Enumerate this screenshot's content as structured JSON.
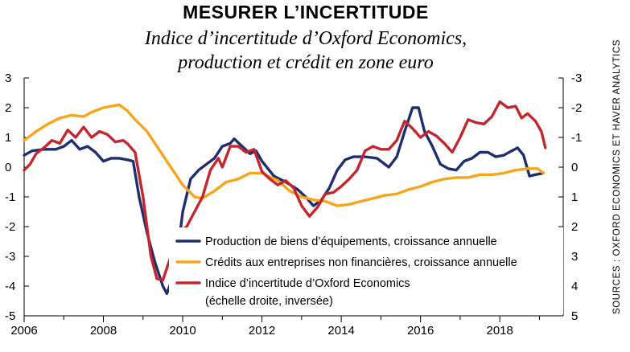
{
  "title": "MESURER L’INCERTITUDE",
  "subtitle_line1": "Indice d’incertitude d’Oxford Economics,",
  "subtitle_line2": "production et crédit en zone euro",
  "source": "SOURCES : OXFORD ECONOMICS ET HAVER ANALYTICS",
  "chart_data": {
    "type": "line",
    "xlim": [
      2006,
      2019.6
    ],
    "ylim_left": [
      -5,
      3
    ],
    "ylim_right_inverted": [
      5,
      -3
    ],
    "x_ticks": [
      "2006",
      "2008",
      "2010",
      "2012",
      "2014",
      "2016",
      "2018"
    ],
    "y_ticks_left": [
      "3",
      "2",
      "1",
      "0",
      "-1",
      "-2",
      "-3",
      "-4",
      "-5"
    ],
    "y_ticks_right": [
      "-3",
      "-2",
      "-1",
      "0",
      "1",
      "2",
      "3",
      "4",
      "5"
    ],
    "grid": false,
    "legend_position": "bottom-right-inside",
    "series": [
      {
        "name": "Production de biens d’équipements, croissance annuelle",
        "color": "#1f2f6e",
        "axis": "left",
        "points": [
          [
            2006.0,
            0.4
          ],
          [
            2006.2,
            0.55
          ],
          [
            2006.5,
            0.6
          ],
          [
            2006.8,
            0.6
          ],
          [
            2007.0,
            0.7
          ],
          [
            2007.2,
            0.9
          ],
          [
            2007.4,
            0.6
          ],
          [
            2007.6,
            0.7
          ],
          [
            2007.8,
            0.5
          ],
          [
            2008.0,
            0.2
          ],
          [
            2008.2,
            0.3
          ],
          [
            2008.4,
            0.3
          ],
          [
            2008.6,
            0.25
          ],
          [
            2008.75,
            0.2
          ],
          [
            2008.9,
            -1.0
          ],
          [
            2009.1,
            -2.2
          ],
          [
            2009.3,
            -3.2
          ],
          [
            2009.5,
            -4.0
          ],
          [
            2009.6,
            -4.25
          ],
          [
            2009.75,
            -3.7
          ],
          [
            2009.9,
            -2.6
          ],
          [
            2010.0,
            -1.5
          ],
          [
            2010.2,
            -0.4
          ],
          [
            2010.4,
            -0.1
          ],
          [
            2010.6,
            0.1
          ],
          [
            2010.8,
            0.3
          ],
          [
            2011.0,
            0.7
          ],
          [
            2011.2,
            0.8
          ],
          [
            2011.3,
            0.95
          ],
          [
            2011.5,
            0.7
          ],
          [
            2011.7,
            0.45
          ],
          [
            2011.85,
            0.55
          ],
          [
            2012.0,
            0.2
          ],
          [
            2012.3,
            -0.3
          ],
          [
            2012.6,
            -0.5
          ],
          [
            2012.9,
            -0.75
          ],
          [
            2013.1,
            -1.0
          ],
          [
            2013.3,
            -1.3
          ],
          [
            2013.5,
            -1.1
          ],
          [
            2013.7,
            -0.7
          ],
          [
            2013.9,
            -0.1
          ],
          [
            2014.1,
            0.25
          ],
          [
            2014.3,
            0.35
          ],
          [
            2014.6,
            0.35
          ],
          [
            2014.9,
            0.3
          ],
          [
            2015.0,
            0.2
          ],
          [
            2015.2,
            0.0
          ],
          [
            2015.4,
            0.35
          ],
          [
            2015.6,
            1.2
          ],
          [
            2015.8,
            2.0
          ],
          [
            2015.95,
            2.0
          ],
          [
            2016.1,
            1.2
          ],
          [
            2016.3,
            0.7
          ],
          [
            2016.5,
            0.1
          ],
          [
            2016.7,
            -0.05
          ],
          [
            2016.9,
            -0.1
          ],
          [
            2017.1,
            0.2
          ],
          [
            2017.3,
            0.3
          ],
          [
            2017.5,
            0.5
          ],
          [
            2017.7,
            0.5
          ],
          [
            2017.9,
            0.35
          ],
          [
            2018.1,
            0.4
          ],
          [
            2018.3,
            0.55
          ],
          [
            2018.45,
            0.65
          ],
          [
            2018.6,
            0.4
          ],
          [
            2018.75,
            -0.3
          ],
          [
            2018.9,
            -0.25
          ],
          [
            2019.1,
            -0.2
          ]
        ]
      },
      {
        "name": "Crédits aux entreprises non financières, croissance annuelle",
        "color": "#f5a61b",
        "axis": "left",
        "points": [
          [
            2006.0,
            0.9
          ],
          [
            2006.3,
            1.2
          ],
          [
            2006.6,
            1.45
          ],
          [
            2006.9,
            1.65
          ],
          [
            2007.2,
            1.75
          ],
          [
            2007.5,
            1.7
          ],
          [
            2007.7,
            1.85
          ],
          [
            2008.0,
            2.0
          ],
          [
            2008.2,
            2.05
          ],
          [
            2008.4,
            2.1
          ],
          [
            2008.6,
            1.9
          ],
          [
            2008.8,
            1.6
          ],
          [
            2009.1,
            1.2
          ],
          [
            2009.4,
            0.6
          ],
          [
            2009.7,
            0.0
          ],
          [
            2010.0,
            -0.6
          ],
          [
            2010.3,
            -1.0
          ],
          [
            2010.5,
            -1.05
          ],
          [
            2010.8,
            -0.8
          ],
          [
            2011.1,
            -0.5
          ],
          [
            2011.4,
            -0.4
          ],
          [
            2011.7,
            -0.2
          ],
          [
            2012.0,
            -0.2
          ],
          [
            2012.4,
            -0.45
          ],
          [
            2012.7,
            -0.8
          ],
          [
            2013.0,
            -1.0
          ],
          [
            2013.3,
            -1.1
          ],
          [
            2013.6,
            -1.15
          ],
          [
            2013.9,
            -1.3
          ],
          [
            2014.2,
            -1.25
          ],
          [
            2014.5,
            -1.15
          ],
          [
            2014.8,
            -1.05
          ],
          [
            2015.1,
            -0.95
          ],
          [
            2015.4,
            -0.9
          ],
          [
            2015.7,
            -0.75
          ],
          [
            2016.0,
            -0.65
          ],
          [
            2016.3,
            -0.5
          ],
          [
            2016.6,
            -0.4
          ],
          [
            2016.9,
            -0.35
          ],
          [
            2017.2,
            -0.35
          ],
          [
            2017.5,
            -0.25
          ],
          [
            2017.8,
            -0.25
          ],
          [
            2018.1,
            -0.2
          ],
          [
            2018.4,
            -0.1
          ],
          [
            2018.7,
            -0.05
          ],
          [
            2018.95,
            -0.05
          ],
          [
            2019.1,
            -0.2
          ]
        ]
      },
      {
        "name": "Indice d’incertitude d’Oxford Economics",
        "name_line2": "(échelle droite, inversée)",
        "color": "#c4262e",
        "axis": "right",
        "points": [
          [
            2006.0,
            0.1
          ],
          [
            2006.15,
            -0.1
          ],
          [
            2006.3,
            -0.45
          ],
          [
            2006.5,
            -0.65
          ],
          [
            2006.7,
            -0.9
          ],
          [
            2006.9,
            -0.8
          ],
          [
            2007.1,
            -1.25
          ],
          [
            2007.3,
            -1.0
          ],
          [
            2007.5,
            -1.35
          ],
          [
            2007.7,
            -1.0
          ],
          [
            2007.9,
            -1.2
          ],
          [
            2008.1,
            -1.1
          ],
          [
            2008.3,
            -0.85
          ],
          [
            2008.5,
            -0.9
          ],
          [
            2008.6,
            -0.8
          ],
          [
            2008.8,
            -0.5
          ],
          [
            2009.0,
            1.0
          ],
          [
            2009.2,
            3.0
          ],
          [
            2009.35,
            3.75
          ],
          [
            2009.5,
            3.8
          ],
          [
            2009.7,
            3.0
          ],
          [
            2009.9,
            2.2
          ],
          [
            2010.1,
            2.0
          ],
          [
            2010.3,
            1.5
          ],
          [
            2010.5,
            1.0
          ],
          [
            2010.7,
            0.1
          ],
          [
            2010.9,
            -0.3
          ],
          [
            2011.0,
            0.0
          ],
          [
            2011.2,
            -0.7
          ],
          [
            2011.4,
            -0.7
          ],
          [
            2011.6,
            -0.5
          ],
          [
            2011.8,
            -0.6
          ],
          [
            2012.0,
            0.15
          ],
          [
            2012.2,
            0.4
          ],
          [
            2012.4,
            0.6
          ],
          [
            2012.6,
            0.45
          ],
          [
            2012.8,
            0.7
          ],
          [
            2013.0,
            1.3
          ],
          [
            2013.2,
            1.65
          ],
          [
            2013.4,
            1.35
          ],
          [
            2013.6,
            0.9
          ],
          [
            2013.8,
            0.85
          ],
          [
            2014.0,
            0.65
          ],
          [
            2014.2,
            0.4
          ],
          [
            2014.4,
            0.1
          ],
          [
            2014.6,
            -0.55
          ],
          [
            2014.8,
            -0.7
          ],
          [
            2015.0,
            -0.6
          ],
          [
            2015.2,
            -0.6
          ],
          [
            2015.4,
            -0.9
          ],
          [
            2015.6,
            -1.55
          ],
          [
            2015.8,
            -1.3
          ],
          [
            2016.0,
            -1.0
          ],
          [
            2016.2,
            -1.2
          ],
          [
            2016.4,
            -1.05
          ],
          [
            2016.6,
            -0.8
          ],
          [
            2016.8,
            -0.5
          ],
          [
            2017.0,
            -1.0
          ],
          [
            2017.2,
            -1.6
          ],
          [
            2017.4,
            -1.5
          ],
          [
            2017.6,
            -1.45
          ],
          [
            2017.8,
            -1.7
          ],
          [
            2018.0,
            -2.2
          ],
          [
            2018.2,
            -2.0
          ],
          [
            2018.4,
            -2.05
          ],
          [
            2018.55,
            -1.65
          ],
          [
            2018.7,
            -1.8
          ],
          [
            2018.9,
            -1.55
          ],
          [
            2019.05,
            -1.2
          ],
          [
            2019.15,
            -0.65
          ]
        ]
      }
    ]
  }
}
